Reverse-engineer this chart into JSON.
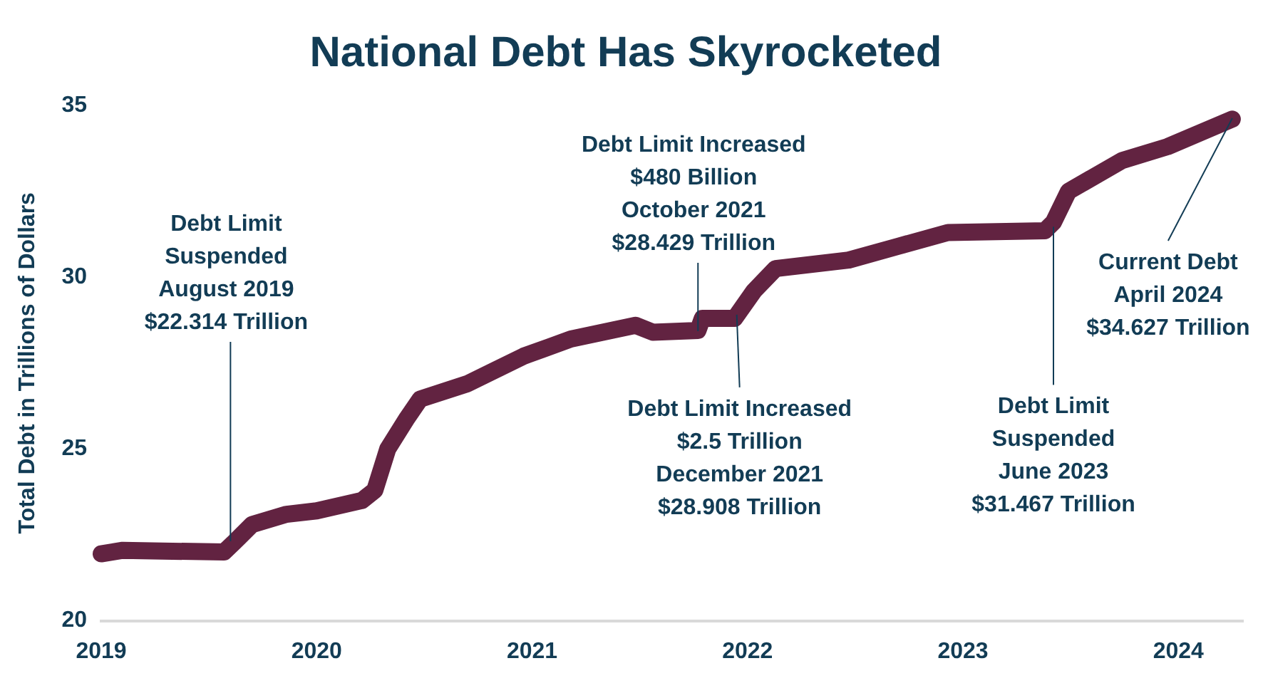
{
  "chart_data": {
    "type": "line",
    "title": "National Debt Has Skyrocketed",
    "ylabel": "Total Debt in Trillions of Dollars",
    "x": [
      2019.0,
      2019.1,
      2019.57,
      2019.62,
      2019.7,
      2019.86,
      2020.0,
      2020.21,
      2020.27,
      2020.33,
      2020.42,
      2020.48,
      2020.7,
      2020.96,
      2021.18,
      2021.48,
      2021.56,
      2021.77,
      2021.79,
      2021.94,
      2022.03,
      2022.13,
      2022.47,
      2022.7,
      2022.93,
      2023.38,
      2023.42,
      2023.49,
      2023.74,
      2023.95,
      2024.25
    ],
    "series": [
      {
        "color": "#622341",
        "values": [
          21.95,
          22.05,
          22.0,
          22.3,
          22.8,
          23.1,
          23.2,
          23.5,
          23.8,
          25.0,
          25.9,
          26.45,
          26.9,
          27.7,
          28.2,
          28.6,
          28.4,
          28.45,
          28.8,
          28.8,
          29.6,
          30.25,
          30.5,
          30.9,
          31.3,
          31.35,
          31.6,
          32.5,
          33.4,
          33.8,
          34.6
        ]
      }
    ],
    "xlim": [
      2019,
      2024.3
    ],
    "xticks": [
      2019,
      2020,
      2021,
      2022,
      2023,
      2024
    ],
    "ylim": [
      20,
      35
    ],
    "yticks": [
      20,
      25,
      30,
      35
    ],
    "grid": false,
    "legend": false,
    "marker": "none",
    "annotations": [
      {
        "text": "Debt Limit\nSuspended\nAugust 2019\n$22.314 Trillion",
        "x": 2019.6,
        "y": 22.314
      },
      {
        "text": "Debt Limit Increased\n$480 Billion\nOctober 2021\n$28.429 Trillion",
        "x": 2021.77,
        "y": 28.429
      },
      {
        "text": "Debt Limit Increased\n$2.5 Trillion\nDecember 2021\n$28.908 Trillion",
        "x": 2021.95,
        "y": 28.908
      },
      {
        "text": "Debt Limit\nSuspended\nJune 2023\n$31.467 Trillion",
        "x": 2023.42,
        "y": 31.467
      },
      {
        "text": "Current Debt\nApril 2024\n$34.627 Trillion",
        "x": 2024.25,
        "y": 34.627
      }
    ]
  }
}
